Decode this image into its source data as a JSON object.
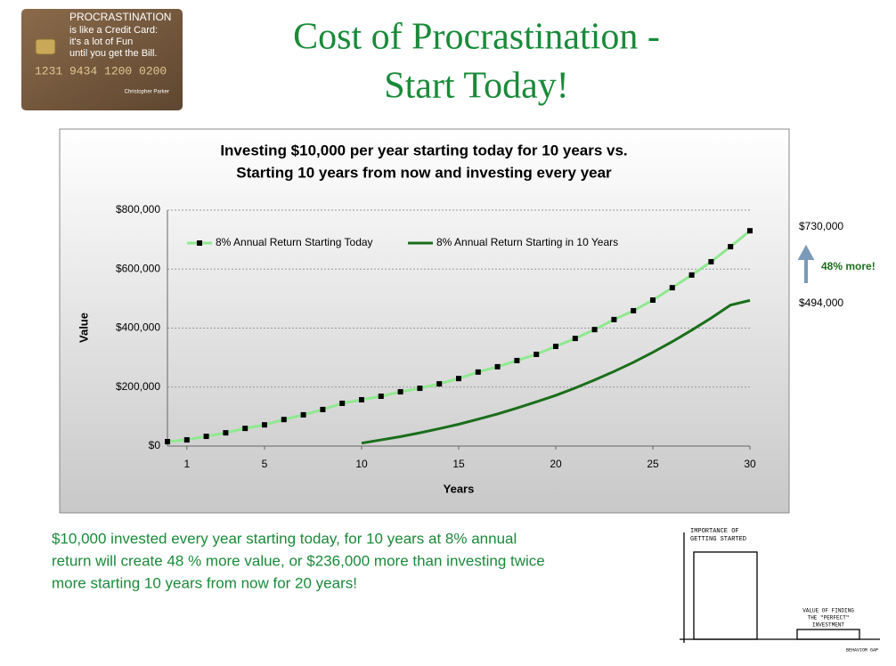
{
  "slide_title": [
    "Cost of Procrastination -",
    "Start Today!"
  ],
  "card": {
    "lines": [
      "PROCRASTINATION",
      "is like a Credit Card:",
      "it's a lot of Fun",
      "until you get the Bill."
    ],
    "number": "1231 9434 1200 0200",
    "author": "Christopher Parker"
  },
  "chart_data": {
    "type": "line",
    "title": [
      "Investing $10,000 per year starting today for 10 years vs.",
      "Starting 10 years from now and investing every year"
    ],
    "x_label": "Years",
    "y_label": "Value",
    "x": [
      0,
      1,
      2,
      3,
      4,
      5,
      6,
      7,
      8,
      9,
      10,
      11,
      12,
      13,
      14,
      15,
      16,
      17,
      18,
      19,
      20,
      21,
      22,
      23,
      24,
      25,
      26,
      27,
      28,
      29,
      30
    ],
    "xlim": [
      0,
      30
    ],
    "xticks": [
      1,
      5,
      10,
      15,
      20,
      25,
      30
    ],
    "ylim": [
      0,
      800000
    ],
    "yticks": [
      {
        "value": 0,
        "label": "$0"
      },
      {
        "value": 200000,
        "label": "$200,000"
      },
      {
        "value": 400000,
        "label": "$400,000"
      },
      {
        "value": 600000,
        "label": "$600,000"
      },
      {
        "value": 800000,
        "label": "$800,000"
      }
    ],
    "grid": true,
    "legend": "top",
    "series": [
      {
        "name": "8% Annual Return Starting Today",
        "color": "#90e890",
        "marker": "square",
        "marker_color": "#000000",
        "values": [
          15000,
          21000,
          33000,
          45000,
          60000,
          72000,
          90000,
          106000,
          124000,
          145000,
          157000,
          169000,
          184000,
          196000,
          211000,
          229000,
          251000,
          269000,
          290000,
          311000,
          338000,
          365000,
          395000,
          429000,
          459000,
          495000,
          537000,
          580000,
          625000,
          676000,
          730000
        ]
      },
      {
        "name": "8% Annual Return Starting in 10 Years",
        "color": "#1a6e1a",
        "marker": "none",
        "values": [
          null,
          null,
          null,
          null,
          null,
          null,
          null,
          null,
          null,
          null,
          10000,
          21000,
          32000,
          45000,
          59000,
          74000,
          91000,
          109000,
          129000,
          150000,
          172000,
          197000,
          224000,
          253000,
          284000,
          318000,
          354000,
          393000,
          434000,
          478000,
          494000
        ]
      }
    ]
  },
  "annotations": {
    "top": "$730,000",
    "middle": "48% more!",
    "bottom": "$494,000"
  },
  "summary": [
    "$10,000 invested every year starting today, for 10 years at 8% annual",
    "return will create 48 % more value, or $236,000 more than investing twice",
    "more starting 10 years from now for 20 years!"
  ],
  "sketch": {
    "tall_label": [
      "IMPORTANCE OF",
      "GETTING STARTED"
    ],
    "short_label": [
      "VALUE OF FINDING",
      "THE \"PERFECT\"",
      "INVESTMENT"
    ],
    "signature": "BEHAVIOR GAP"
  }
}
